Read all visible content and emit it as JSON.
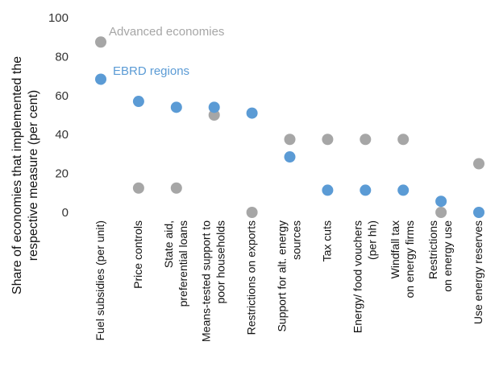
{
  "chart_data": {
    "type": "scatter",
    "ylabel_lines": [
      "Share of economies that implemented the",
      "respective measure (per cent)"
    ],
    "ylim": [
      0,
      100
    ],
    "yticks": [
      0,
      20,
      40,
      60,
      80,
      100
    ],
    "grid": false,
    "legend": "inline-labels",
    "categories": [
      "Fuel subsidies (per unit)",
      "Price controls",
      "State aid, preferential loans",
      "Means-tested support to poor households",
      "Restrictions on exports",
      "Support for alt. energy sources",
      "Tax cuts",
      "Energy/ food vouchers (per hh)",
      "Windfall tax on energy firms",
      "Restrictions on energy use",
      "Use energy reserves"
    ],
    "category_lines": [
      [
        "Fuel subsidies (per unit)"
      ],
      [
        "Price controls"
      ],
      [
        "State aid,",
        "preferential loans"
      ],
      [
        "Means-tested support to",
        "poor households"
      ],
      [
        "Restrictions on exports"
      ],
      [
        "Support for alt. energy",
        "sources"
      ],
      [
        "Tax cuts"
      ],
      [
        "Energy/ food vouchers",
        "(per hh)"
      ],
      [
        "Windfall tax",
        "on energy firms"
      ],
      [
        "Restrictions",
        "on energy use"
      ],
      [
        "Use energy reserves"
      ]
    ],
    "series": [
      {
        "name": "Advanced economies",
        "color": "#a6a6a6",
        "values": [
          87.5,
          12.5,
          12.5,
          50,
          0,
          37.5,
          37.5,
          37.5,
          37.5,
          0,
          25
        ]
      },
      {
        "name": "EBRD regions",
        "color": "#5b9bd5",
        "values": [
          68.4,
          57,
          54,
          54,
          51,
          28.5,
          11.4,
          11.4,
          11.4,
          5.7,
          0
        ]
      }
    ]
  }
}
